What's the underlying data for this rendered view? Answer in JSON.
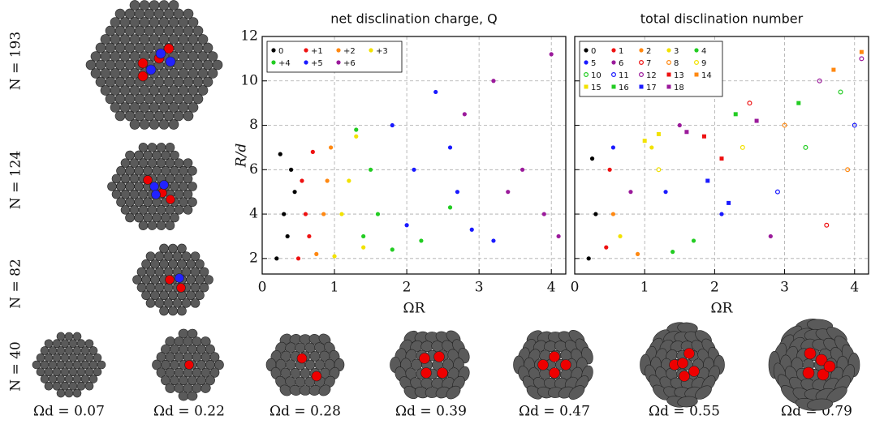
{
  "chart_data": [
    {
      "type": "scatter",
      "title": "net disclination charge, Q",
      "x_label": "ΩR",
      "y_label": "R/d",
      "xlim": [
        0,
        4.2
      ],
      "ylim": [
        1.3,
        12
      ],
      "xticks": [
        0,
        1,
        2,
        3,
        4
      ],
      "yticks": [
        2,
        4,
        6,
        8,
        10,
        12
      ],
      "grid": true,
      "ytick_labels": true,
      "legend": "upper left",
      "series": [
        {
          "name": "0",
          "color": "#000000",
          "marker": "filled",
          "x": [
            0.2,
            0.3,
            0.4,
            0.25,
            0.35,
            0.45
          ],
          "y": [
            2,
            4,
            6,
            6.7,
            3,
            5
          ]
        },
        {
          "name": "+1",
          "color": "#ee1111",
          "marker": "filled",
          "x": [
            0.5,
            0.6,
            0.7,
            0.55,
            0.65
          ],
          "y": [
            2,
            4,
            6.8,
            5.5,
            3
          ]
        },
        {
          "name": "+2",
          "color": "#ff8811",
          "marker": "filled",
          "x": [
            0.75,
            0.85,
            0.95,
            0.9
          ],
          "y": [
            2.2,
            4,
            7,
            5.5
          ]
        },
        {
          "name": "+3",
          "color": "#f2e200",
          "marker": "filled",
          "x": [
            1.0,
            1.1,
            1.3,
            1.2,
            1.4
          ],
          "y": [
            2.1,
            4,
            7.5,
            5.5,
            2.5
          ]
        },
        {
          "name": "+4",
          "color": "#22cc22",
          "marker": "filled",
          "x": [
            1.3,
            1.5,
            1.6,
            1.4,
            1.8,
            2.2,
            2.6
          ],
          "y": [
            7.8,
            6,
            4,
            3,
            2.4,
            2.8,
            4.3
          ]
        },
        {
          "name": "+5",
          "color": "#1a1aff",
          "marker": "filled",
          "x": [
            1.8,
            2.1,
            2.4,
            2.6,
            2.0,
            2.9,
            3.2,
            2.7
          ],
          "y": [
            8,
            6,
            9.5,
            7,
            3.5,
            3.3,
            2.8,
            5
          ]
        },
        {
          "name": "+6",
          "color": "#9b1a9b",
          "marker": "filled",
          "x": [
            2.8,
            3.2,
            3.6,
            4.0,
            3.9,
            4.1,
            3.4
          ],
          "y": [
            8.5,
            10,
            6,
            11.2,
            4,
            3.0,
            5
          ]
        }
      ]
    },
    {
      "type": "scatter",
      "title": "total disclination number",
      "x_label": "ΩR",
      "xlim": [
        0,
        4.2
      ],
      "ylim": [
        1.3,
        12
      ],
      "xticks": [
        0,
        1,
        2,
        3,
        4
      ],
      "yticks": [
        2,
        4,
        6,
        8,
        10,
        12
      ],
      "grid": true,
      "ytick_labels": false,
      "legend": "upper left",
      "series": [
        {
          "name": "0",
          "color": "#000000",
          "marker": "filled",
          "x": [
            0.2,
            0.3,
            0.25
          ],
          "y": [
            2,
            4,
            6.5
          ]
        },
        {
          "name": "1",
          "color": "#ee1111",
          "marker": "filled",
          "x": [
            0.45,
            0.5
          ],
          "y": [
            2.5,
            6
          ]
        },
        {
          "name": "2",
          "color": "#ff8811",
          "marker": "filled",
          "x": [
            0.55,
            0.9
          ],
          "y": [
            4,
            2.2
          ]
        },
        {
          "name": "3",
          "color": "#f2e200",
          "marker": "filled",
          "x": [
            0.65,
            1.1
          ],
          "y": [
            3,
            7
          ]
        },
        {
          "name": "4",
          "color": "#22cc22",
          "marker": "filled",
          "x": [
            1.4,
            1.7
          ],
          "y": [
            2.3,
            2.8
          ]
        },
        {
          "name": "5",
          "color": "#1a1aff",
          "marker": "filled",
          "x": [
            0.55,
            1.3,
            2.1
          ],
          "y": [
            7,
            5,
            4
          ]
        },
        {
          "name": "6",
          "color": "#9b1a9b",
          "marker": "filled",
          "x": [
            0.8,
            1.5,
            2.8
          ],
          "y": [
            5,
            8,
            3
          ]
        },
        {
          "name": "7",
          "color": "#ee1111",
          "marker": "open",
          "x": [
            2.5,
            3.6
          ],
          "y": [
            9,
            3.5
          ]
        },
        {
          "name": "8",
          "color": "#ff8811",
          "marker": "open",
          "x": [
            3.0,
            3.9
          ],
          "y": [
            8,
            6
          ]
        },
        {
          "name": "9",
          "color": "#f2e200",
          "marker": "open",
          "x": [
            1.2,
            2.4
          ],
          "y": [
            6,
            7
          ]
        },
        {
          "name": "10",
          "color": "#22cc22",
          "marker": "open",
          "x": [
            3.3,
            3.8
          ],
          "y": [
            7,
            9.5
          ]
        },
        {
          "name": "11",
          "color": "#1a1aff",
          "marker": "open",
          "x": [
            2.9,
            4.0
          ],
          "y": [
            5,
            8
          ]
        },
        {
          "name": "12",
          "color": "#9b1a9b",
          "marker": "open",
          "x": [
            3.5,
            4.1
          ],
          "y": [
            10,
            11
          ]
        },
        {
          "name": "13",
          "color": "#ee1111",
          "marker": "square",
          "x": [
            1.85,
            2.1
          ],
          "y": [
            7.5,
            6.5
          ]
        },
        {
          "name": "14",
          "color": "#ff8811",
          "marker": "square",
          "x": [
            3.7,
            4.1
          ],
          "y": [
            10.5,
            11.3
          ]
        },
        {
          "name": "15",
          "color": "#f2e200",
          "marker": "square",
          "x": [
            1.0,
            1.2
          ],
          "y": [
            7.3,
            7.6
          ]
        },
        {
          "name": "16",
          "color": "#22cc22",
          "marker": "square",
          "x": [
            2.3,
            3.2
          ],
          "y": [
            8.5,
            9
          ]
        },
        {
          "name": "17",
          "color": "#1a1aff",
          "marker": "square",
          "x": [
            1.9,
            2.2
          ],
          "y": [
            5.5,
            4.5
          ]
        },
        {
          "name": "18",
          "color": "#9b1a9b",
          "marker": "square",
          "x": [
            1.6,
            2.6
          ],
          "y": [
            7.7,
            8.2
          ]
        }
      ]
    }
  ],
  "row_labels": [
    "N = 193",
    "N = 124",
    "N = 82",
    "N = 40"
  ],
  "column_labels": [
    "Ωd = 0.07",
    "Ωd = 0.22",
    "Ωd = 0.28",
    "Ωd = 0.39",
    "Ωd = 0.47",
    "Ωd = 0.55",
    "Ωd = 0.79"
  ]
}
